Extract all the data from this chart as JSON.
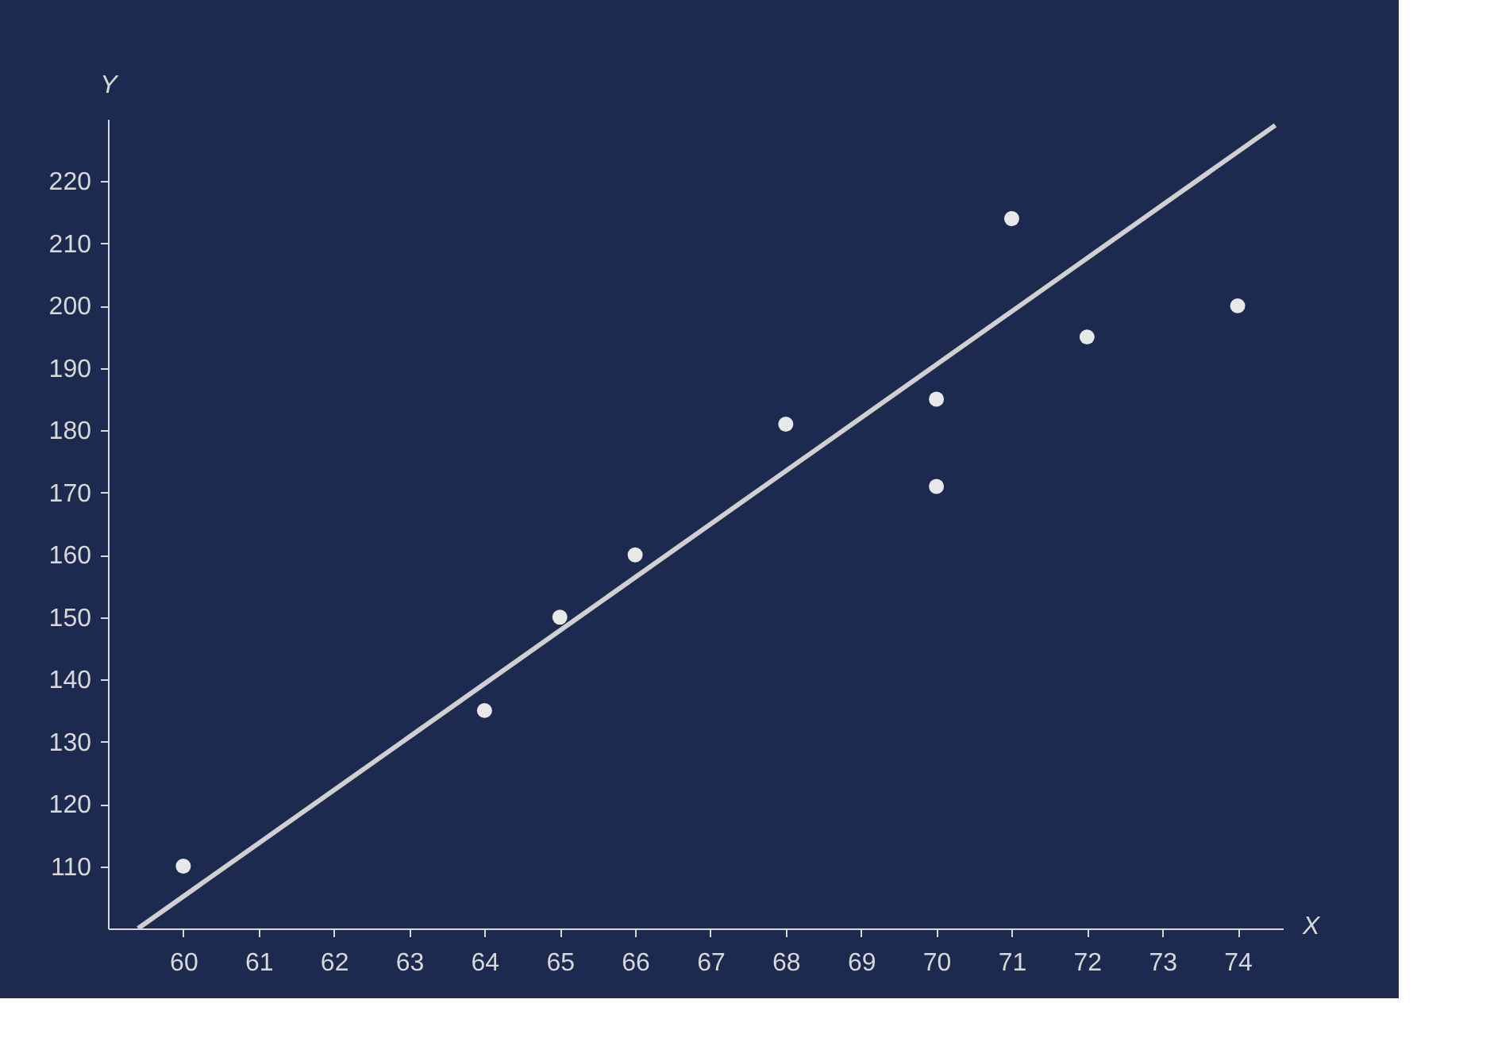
{
  "chart_data": {
    "type": "scatter",
    "xlabel": "X",
    "ylabel": "Y",
    "xlim": [
      59,
      74.6
    ],
    "ylim": [
      100,
      230
    ],
    "xticks": [
      60,
      61,
      62,
      63,
      64,
      65,
      66,
      67,
      68,
      69,
      70,
      71,
      72,
      73,
      74
    ],
    "yticks": [
      110,
      120,
      130,
      140,
      150,
      160,
      170,
      180,
      190,
      200,
      210,
      220
    ],
    "grid": false,
    "legend": false,
    "series": [
      {
        "color": "#e8e8e8",
        "marker": "circle",
        "x": [
          60,
          64,
          65,
          66,
          68,
          70,
          70,
          71,
          72,
          74
        ],
        "values": [
          110,
          135,
          150,
          160,
          181,
          185,
          171,
          214,
          195,
          200
        ]
      },
      {
        "type": "line",
        "color": "#d0d0d0",
        "x": [
          59.4,
          74.5
        ],
        "values": [
          100,
          229
        ]
      }
    ]
  }
}
